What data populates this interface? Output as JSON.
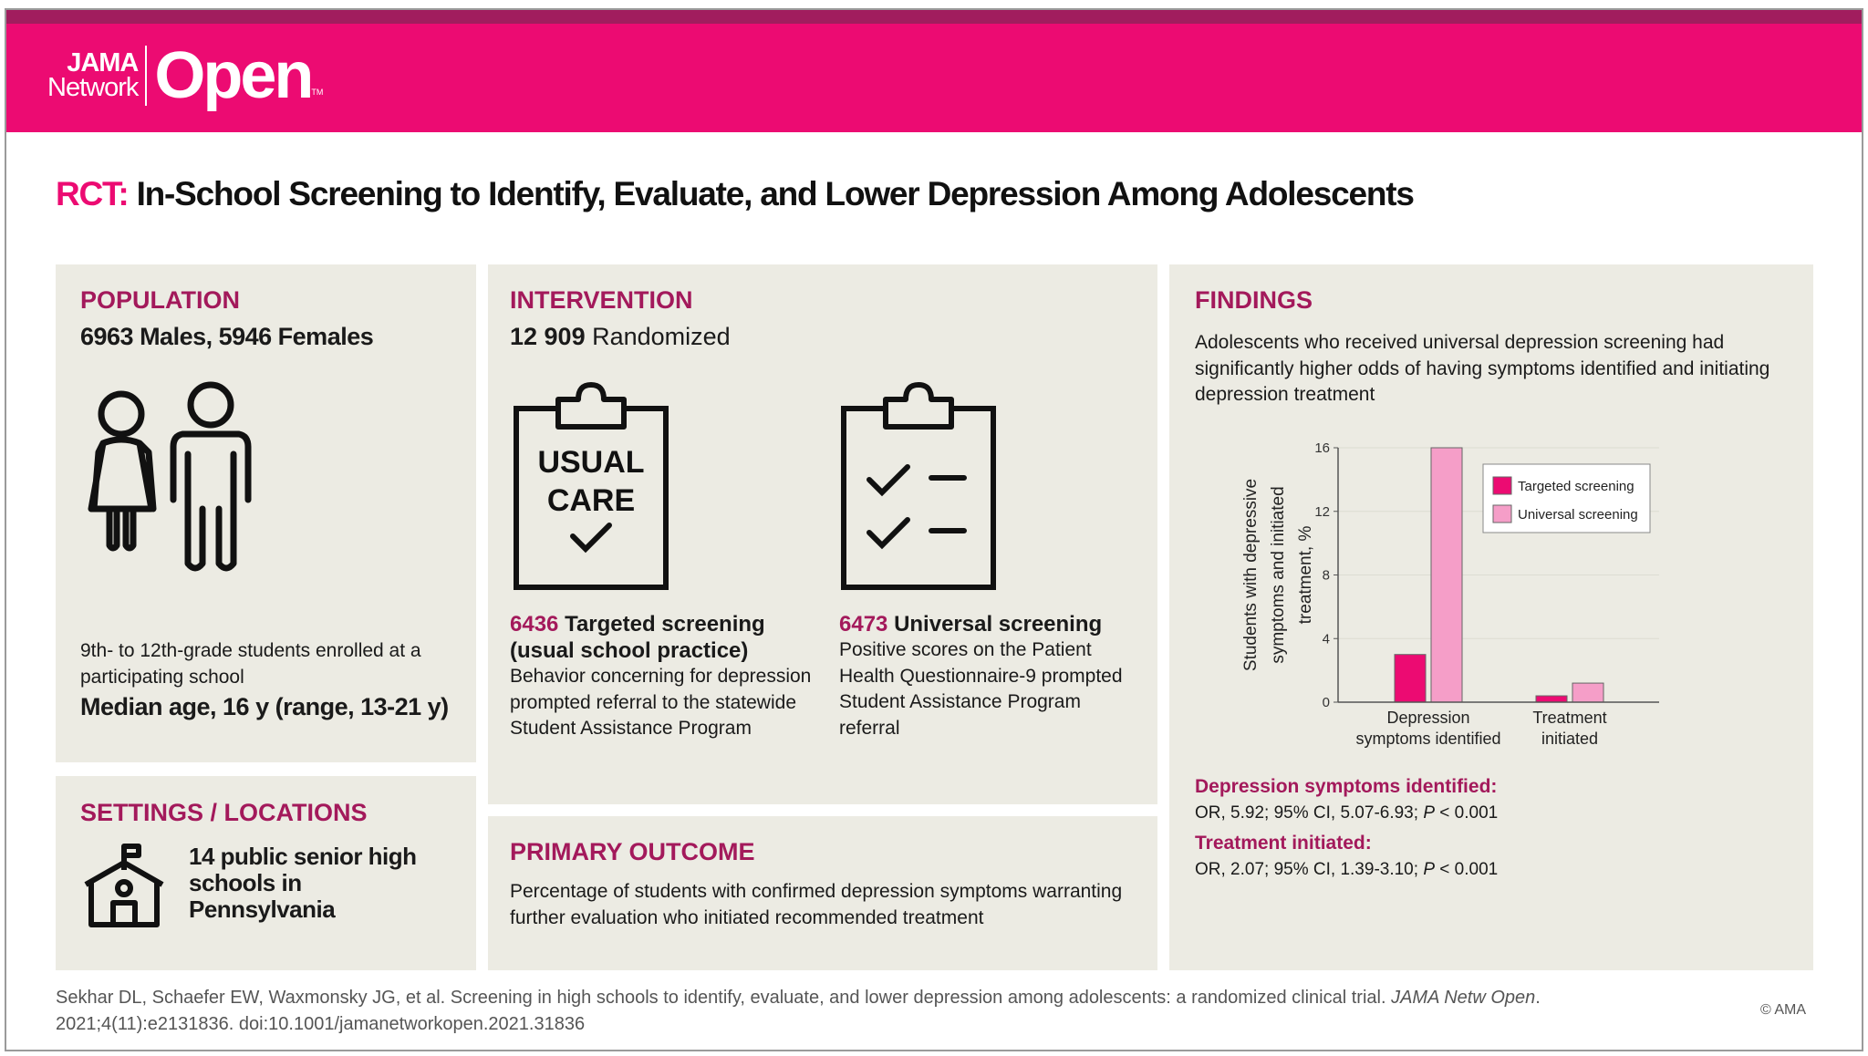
{
  "header": {
    "logo_top": "JAMA",
    "logo_mid": "Network",
    "logo_main": "Open",
    "logo_tm": "TM"
  },
  "title": {
    "prefix": "RCT:",
    "text": "In-School Screening to Identify, Evaluate, and Lower Depression Among Adolescents"
  },
  "population": {
    "heading": "POPULATION",
    "counts": "6963 Males, 5946 Females",
    "desc": "9th- to 12th-grade students enrolled at a participating school",
    "median": "Median age, 16 y (range, 13-21 y)"
  },
  "settings": {
    "heading": "SETTINGS / LOCATIONS",
    "text": "14 public senior high schools in Pennsylvania"
  },
  "intervention": {
    "heading": "INTERVENTION",
    "randomized_n": "12 909",
    "randomized_label": "Randomized",
    "usual_care_label_1": "USUAL",
    "usual_care_label_2": "CARE",
    "arms": [
      {
        "n": "6436",
        "name": "Targeted screening (usual school practice)",
        "desc": "Behavior concerning for depression prompted referral to the statewide Student Assistance Program"
      },
      {
        "n": "6473",
        "name": "Universal screening",
        "desc": "Positive scores on the Patient Health Questionnaire-9 prompted Student Assistance Program referral"
      }
    ]
  },
  "primary_outcome": {
    "heading": "PRIMARY OUTCOME",
    "text": "Percentage of students with confirmed depression symptoms warranting further evaluation who initiated recommended treatment"
  },
  "findings": {
    "heading": "FINDINGS",
    "summary": "Adolescents who received universal depression screening had significantly higher odds of having symptoms identified and initiating depression treatment",
    "results": [
      {
        "label": "Depression symptoms identified:",
        "stat": "OR, 5.92; 95% CI, 5.07-6.93; ",
        "p": "P",
        "pval": " < 0.001"
      },
      {
        "label": "Treatment initiated:",
        "stat": "OR, 2.07; 95% CI, 1.39-3.10; ",
        "p": "P",
        "pval": " < 0.001"
      }
    ]
  },
  "chart_data": {
    "type": "bar",
    "categories": [
      "Depression symptoms identified",
      "Treatment initiated"
    ],
    "category_lines": [
      [
        "Depression",
        "symptoms identified"
      ],
      [
        "Treatment",
        "initiated"
      ]
    ],
    "series": [
      {
        "name": "Targeted screening",
        "values": [
          3.0,
          0.4
        ],
        "color": "#ec0b72"
      },
      {
        "name": "Universal screening",
        "values": [
          16.0,
          1.2
        ],
        "color": "#f59ec8"
      }
    ],
    "ylabel_lines": [
      "Students with depressive",
      "symptoms and initiated",
      "treatment, %"
    ],
    "ylim": [
      0,
      16
    ],
    "yticks": [
      0,
      4,
      8,
      12,
      16
    ],
    "grid": true,
    "legend": "top-right"
  },
  "citation": {
    "text": "Sekhar DL, Schaefer EW, Waxmonsky JG, et al. Screening in high schools to identify, evaluate, and lower depression among adolescents: a randomized clinical trial. ",
    "journal": "JAMA Netw Open",
    "rest": ". 2021;4(11):e2131836. doi:10.1001/jamanetworkopen.2021.31836"
  },
  "copyright": "© AMA"
}
